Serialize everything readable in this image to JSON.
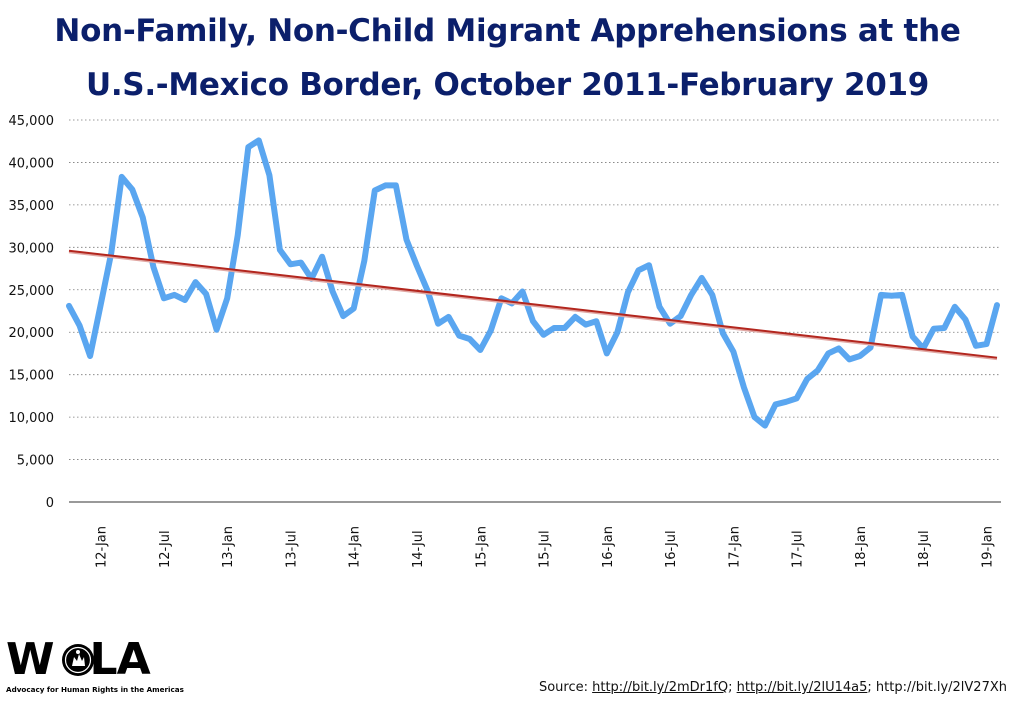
{
  "title_lines": [
    "Non-Family, Non-Child Migrant Apprehensions at the",
    "U.S.-Mexico Border, October 2011-February 2019"
  ],
  "colors": {
    "title": "#0b1f6b",
    "series": "#5aa6f0",
    "trend": "#b3261e",
    "grid": "#7a7a7a"
  },
  "chart_data": {
    "type": "line",
    "title": "Non-Family, Non-Child Migrant Apprehensions at the U.S.-Mexico Border, October 2011-February 2019",
    "xlabel": "",
    "ylabel": "",
    "ylim": [
      0,
      45000
    ],
    "yticks": [
      "0",
      "5,000",
      "10,000",
      "15,000",
      "20,000",
      "25,000",
      "30,000",
      "35,000",
      "40,000",
      "45,000"
    ],
    "xtick_labels": [
      "12-Jan",
      "12-Jul",
      "13-Jan",
      "13-Jul",
      "14-Jan",
      "14-Jul",
      "15-Jan",
      "15-Jul",
      "16-Jan",
      "16-Jul",
      "17-Jan",
      "17-Jul",
      "18-Jan",
      "18-Jul",
      "19-Jan"
    ],
    "grid": true,
    "legend": "none",
    "series": [
      {
        "values": [
          23100,
          20800,
          17200,
          23200,
          29300,
          38300,
          36800,
          33500,
          27700,
          24000,
          24400,
          23800,
          25900,
          24500,
          20300,
          24000,
          31400,
          41800,
          42600,
          38500,
          29700,
          28000,
          28200,
          26300,
          28900,
          24800,
          21900,
          22800,
          28400,
          36700,
          37300,
          37300,
          30900,
          27800,
          24900,
          21000,
          21800,
          19600,
          19200,
          17900,
          20200,
          24000,
          23400,
          24800,
          21300,
          19700,
          20500,
          20500,
          21800,
          20900,
          21300,
          17500,
          20000,
          24700,
          27300,
          27900,
          23000,
          21000,
          21900,
          24400,
          26400,
          24400,
          19900,
          17700,
          13500,
          10000,
          9000,
          11500,
          11800,
          12200,
          14500,
          15500,
          17500,
          18100,
          16800,
          17200,
          18200,
          24400,
          24300,
          24400,
          19500,
          18100,
          20400,
          20500,
          23000,
          21500,
          18400,
          18600,
          23200
        ]
      },
      {
        "type": "trend",
        "values": [
          29600,
          17000
        ]
      }
    ]
  },
  "footer": {
    "source_prefix": "Source: ",
    "link1": "http://bit.ly/2mDr1fQ",
    "sep1": "; ",
    "link2": "http://bit.ly/2lU14a5",
    "sep2": "; ",
    "link3": "http://bit.ly/2lV27Xh"
  },
  "logo": {
    "text": "WOLA",
    "tagline": "Advocacy for Human Rights in the Americas"
  }
}
